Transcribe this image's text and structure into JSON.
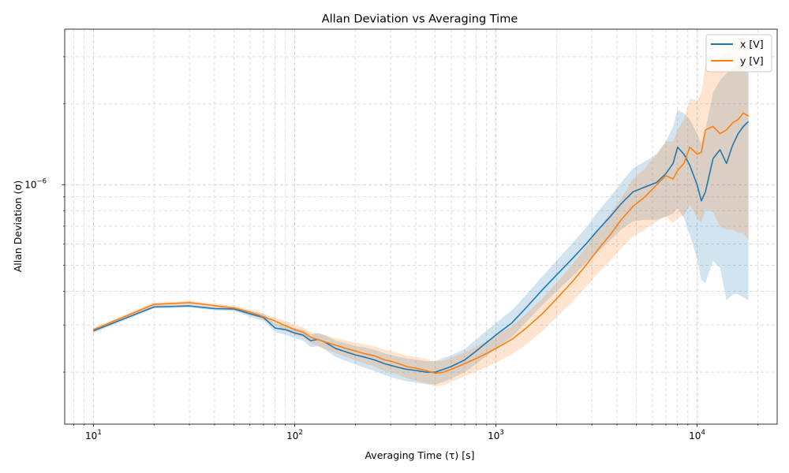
{
  "chart_data": {
    "type": "line",
    "title": "Allan Deviation vs Averaging Time",
    "xlabel": "Averaging Time (τ) [s]",
    "ylabel": "Allan Deviation (σ)",
    "x_scale": "log",
    "y_scale": "log",
    "xlim": [
      7.2,
      25000
    ],
    "ylim": [
      1.28e-07,
      3.8e-06
    ],
    "x_ticks": [
      {
        "value": 10,
        "base": "10",
        "exp": "1"
      },
      {
        "value": 100,
        "base": "10",
        "exp": "2"
      },
      {
        "value": 1000,
        "base": "10",
        "exp": "3"
      },
      {
        "value": 10000,
        "base": "10",
        "exp": "4"
      }
    ],
    "y_ticks": [
      {
        "value": 1e-06,
        "base": "10",
        "exp": "−6"
      }
    ],
    "grid": true,
    "legend_position": "top-right",
    "series": [
      {
        "name": "x [V]",
        "color": "#1f77b4",
        "band_alpha": 0.2,
        "x": [
          10,
          20,
          30,
          40,
          50,
          60,
          70,
          80,
          90,
          100,
          110,
          120,
          130,
          140,
          160,
          180,
          200,
          220,
          250,
          280,
          300,
          330,
          360,
          400,
          450,
          500,
          550,
          600,
          700,
          800,
          900,
          1000,
          1200,
          1400,
          1700,
          2000,
          2400,
          2800,
          3200,
          3700,
          4200,
          4800,
          5500,
          6300,
          7000,
          7600,
          8000,
          8600,
          9200,
          10000,
          10500,
          11000,
          12000,
          13000,
          14000,
          15000,
          16000,
          17000,
          18000
        ],
        "y": [
          2.85e-07,
          3.5e-07,
          3.53e-07,
          3.45e-07,
          3.44e-07,
          3.3e-07,
          3.2e-07,
          2.92e-07,
          2.88e-07,
          2.8e-07,
          2.75e-07,
          2.62e-07,
          2.65e-07,
          2.6e-07,
          2.45e-07,
          2.38e-07,
          2.32e-07,
          2.28e-07,
          2.22e-07,
          2.15e-07,
          2.12e-07,
          2.08e-07,
          2.05e-07,
          2.03e-07,
          2e-07,
          2e-07,
          2.05e-07,
          2.1e-07,
          2.22e-07,
          2.4e-07,
          2.58e-07,
          2.75e-07,
          3.05e-07,
          3.45e-07,
          4.05e-07,
          4.6e-07,
          5.3e-07,
          6e-07,
          6.75e-07,
          7.6e-07,
          8.5e-07,
          9.4e-07,
          9.8e-07,
          1.02e-06,
          1.1e-06,
          1.2e-06,
          1.38e-06,
          1.3e-06,
          1.18e-06,
          1e-06,
          8.7e-07,
          9.4e-07,
          1.25e-06,
          1.35e-06,
          1.2e-06,
          1.4e-06,
          1.55e-06,
          1.65e-06,
          1.72e-06
        ],
        "lower": [
          2.8e-07,
          3.45e-07,
          3.48e-07,
          3.4e-07,
          3.38e-07,
          3.22e-07,
          3.1e-07,
          2.82e-07,
          2.76e-07,
          2.68e-07,
          2.62e-07,
          2.48e-07,
          2.5e-07,
          2.44e-07,
          2.28e-07,
          2.2e-07,
          2.14e-07,
          2.08e-07,
          2.02e-07,
          1.95e-07,
          1.92e-07,
          1.88e-07,
          1.85e-07,
          1.83e-07,
          1.8e-07,
          1.8e-07,
          1.84e-07,
          1.89e-07,
          2e-07,
          2.15e-07,
          2.3e-07,
          2.45e-07,
          2.7e-07,
          3.05e-07,
          3.55e-07,
          4e-07,
          4.55e-07,
          5.1e-07,
          5.6e-07,
          6.2e-07,
          6.8e-07,
          7.3e-07,
          7.4e-07,
          7.4e-07,
          7.6e-07,
          7.8e-07,
          8.2e-07,
          7.5e-07,
          6.5e-07,
          5.3e-07,
          4.4e-07,
          4.3e-07,
          5.2e-07,
          4.9e-07,
          3.7e-07,
          3.9e-07,
          3.9e-07,
          3.8e-07,
          3.7e-07
        ],
        "upper": [
          2.9e-07,
          3.55e-07,
          3.58e-07,
          3.5e-07,
          3.5e-07,
          3.38e-07,
          3.3e-07,
          3.02e-07,
          3e-07,
          2.92e-07,
          2.88e-07,
          2.76e-07,
          2.8e-07,
          2.76e-07,
          2.62e-07,
          2.56e-07,
          2.5e-07,
          2.48e-07,
          2.42e-07,
          2.35e-07,
          2.32e-07,
          2.28e-07,
          2.25e-07,
          2.23e-07,
          2.2e-07,
          2.2e-07,
          2.26e-07,
          2.31e-07,
          2.44e-07,
          2.65e-07,
          2.86e-07,
          3.05e-07,
          3.4e-07,
          3.85e-07,
          4.55e-07,
          5.2e-07,
          6.05e-07,
          6.9e-07,
          7.9e-07,
          9e-07,
          1.02e-06,
          1.15e-06,
          1.22e-06,
          1.3e-06,
          1.45e-06,
          1.65e-06,
          1.9e-06,
          1.85e-06,
          1.75e-06,
          1.55e-06,
          1.42e-06,
          1.6e-06,
          2.2e-06,
          2.45e-06,
          2.6e-06,
          2.7e-06,
          2.8e-06,
          2.85e-06,
          2.9e-06
        ]
      },
      {
        "name": "y [V]",
        "color": "#ff7f0e",
        "band_alpha": 0.2,
        "x": [
          10,
          20,
          30,
          40,
          50,
          60,
          70,
          80,
          90,
          100,
          110,
          120,
          130,
          140,
          160,
          180,
          200,
          220,
          250,
          280,
          300,
          330,
          360,
          400,
          450,
          500,
          550,
          600,
          700,
          800,
          900,
          1000,
          1200,
          1400,
          1700,
          2000,
          2400,
          2800,
          3200,
          3700,
          4200,
          4800,
          5500,
          6300,
          7000,
          7600,
          8000,
          8600,
          9200,
          10000,
          10500,
          11000,
          12000,
          13000,
          14000,
          15000,
          16000,
          17000,
          18000
        ],
        "y": [
          2.88e-07,
          3.58e-07,
          3.63e-07,
          3.54e-07,
          3.47e-07,
          3.35e-07,
          3.22e-07,
          3.1e-07,
          2.98e-07,
          2.88e-07,
          2.82e-07,
          2.7e-07,
          2.65e-07,
          2.6e-07,
          2.52e-07,
          2.45e-07,
          2.4e-07,
          2.35e-07,
          2.3e-07,
          2.22e-07,
          2.2e-07,
          2.15e-07,
          2.1e-07,
          2.07e-07,
          2.03e-07,
          1.98e-07,
          2e-07,
          2.05e-07,
          2.15e-07,
          2.25e-07,
          2.35e-07,
          2.45e-07,
          2.65e-07,
          2.9e-07,
          3.3e-07,
          3.75e-07,
          4.35e-07,
          5e-07,
          5.7e-07,
          6.5e-07,
          7.4e-07,
          8.3e-07,
          9e-07,
          1e-06,
          1.08e-06,
          1.05e-06,
          1.13e-06,
          1.2e-06,
          1.38e-06,
          1.3e-06,
          1.32e-06,
          1.6e-06,
          1.65e-06,
          1.55e-06,
          1.6e-06,
          1.7e-06,
          1.75e-06,
          1.85e-06,
          1.8e-06
        ],
        "lower": [
          2.83e-07,
          3.52e-07,
          3.57e-07,
          3.48e-07,
          3.4e-07,
          3.27e-07,
          3.13e-07,
          3e-07,
          2.86e-07,
          2.76e-07,
          2.7e-07,
          2.57e-07,
          2.51e-07,
          2.45e-07,
          2.36e-07,
          2.28e-07,
          2.22e-07,
          2.16e-07,
          2.1e-07,
          2.02e-07,
          2e-07,
          1.95e-07,
          1.9e-07,
          1.86e-07,
          1.82e-07,
          1.77e-07,
          1.79e-07,
          1.84e-07,
          1.93e-07,
          2.01e-07,
          2.09e-07,
          2.17e-07,
          2.33e-07,
          2.52e-07,
          2.84e-07,
          3.2e-07,
          3.65e-07,
          4.15e-07,
          4.65e-07,
          5.2e-07,
          5.8e-07,
          6.4e-07,
          6.8e-07,
          7.3e-07,
          7.6e-07,
          7.2e-07,
          7.5e-07,
          7.7e-07,
          8.4e-07,
          7.5e-07,
          7.2e-07,
          8.1e-07,
          7.9e-07,
          7e-07,
          6.8e-07,
          6.8e-07,
          6.6e-07,
          6.6e-07,
          6.2e-07
        ],
        "upper": [
          2.93e-07,
          3.64e-07,
          3.69e-07,
          3.6e-07,
          3.54e-07,
          3.43e-07,
          3.31e-07,
          3.2e-07,
          3.1e-07,
          3e-07,
          2.94e-07,
          2.83e-07,
          2.79e-07,
          2.75e-07,
          2.68e-07,
          2.62e-07,
          2.58e-07,
          2.54e-07,
          2.5e-07,
          2.42e-07,
          2.4e-07,
          2.35e-07,
          2.3e-07,
          2.28e-07,
          2.24e-07,
          2.19e-07,
          2.21e-07,
          2.26e-07,
          2.37e-07,
          2.49e-07,
          2.61e-07,
          2.73e-07,
          2.97e-07,
          3.28e-07,
          3.76e-07,
          4.3e-07,
          5.05e-07,
          5.85e-07,
          6.75e-07,
          7.8e-07,
          8.9e-07,
          1.05e-06,
          1.15e-06,
          1.3e-06,
          1.45e-06,
          1.45e-06,
          1.6e-06,
          1.75e-06,
          2.1e-06,
          2.05e-06,
          2.2e-06,
          2.8e-06,
          3e-06,
          2.95e-06,
          3.1e-06,
          3.35e-06,
          3.5e-06,
          3.6e-06,
          3.6e-06
        ]
      }
    ]
  }
}
